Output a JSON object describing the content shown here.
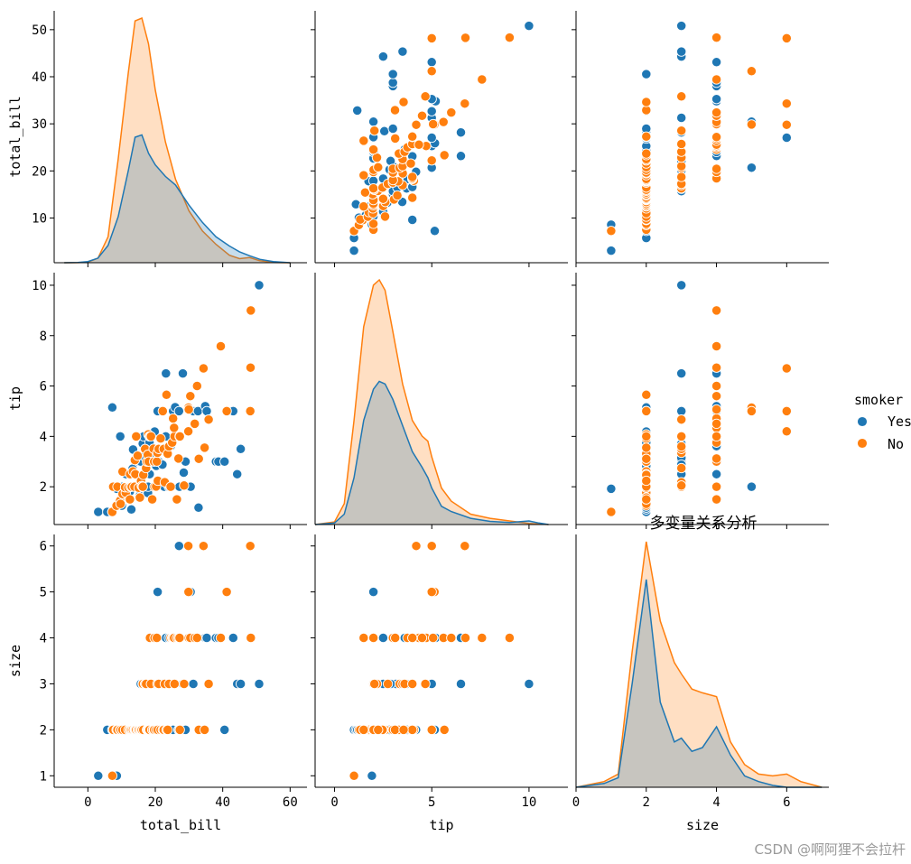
{
  "chart_data": {
    "type": "scatter",
    "kind": "pairplot",
    "title": "多变量关系分析",
    "variables": [
      "total_bill",
      "tip",
      "size"
    ],
    "hue": "smoker",
    "legend": {
      "title": "smoker",
      "placement": "right",
      "entries": [
        {
          "label": "Yes",
          "color": "#1f77b4"
        },
        {
          "label": "No",
          "color": "#ff7f0e"
        }
      ]
    },
    "axes": {
      "total_bill": {
        "range": [
          -10,
          65
        ],
        "ticks": [
          0,
          20,
          40,
          60
        ],
        "tick_labels": [
          "0",
          "20",
          "40",
          "60"
        ],
        "row_ticks": [
          10,
          20,
          30,
          40,
          50
        ],
        "row_tick_labels": [
          "10",
          "20",
          "30",
          "40",
          "50"
        ],
        "row_range": [
          0.5,
          54
        ]
      },
      "tip": {
        "range": [
          -1,
          12
        ],
        "ticks": [
          0,
          5,
          10
        ],
        "tick_labels": [
          "0",
          "5",
          "10"
        ],
        "row_ticks": [
          2,
          4,
          6,
          8,
          10
        ],
        "row_tick_labels": [
          "2",
          "4",
          "6",
          "8",
          "10"
        ],
        "row_range": [
          0.5,
          10.5
        ]
      },
      "size": {
        "range": [
          0,
          7.2
        ],
        "ticks": [
          0,
          2,
          4,
          6
        ],
        "tick_labels": [
          "0",
          "2",
          "4",
          "6"
        ],
        "row_ticks": [
          1,
          2,
          3,
          4,
          5,
          6
        ],
        "row_tick_labels": [
          "1",
          "2",
          "3",
          "4",
          "5",
          "6"
        ],
        "row_range": [
          0.75,
          6.25
        ]
      }
    },
    "kde": {
      "total_bill": {
        "x": [
          -7,
          -3,
          0,
          3,
          6,
          9,
          12,
          14,
          16,
          18,
          20,
          23,
          26,
          30,
          34,
          38,
          42,
          45,
          48,
          51,
          55,
          60
        ],
        "series": [
          {
            "name": "Yes",
            "values": [
              0,
              0.05,
              0.2,
              0.8,
              3,
              8,
              16,
              21.8,
              22.2,
              19,
              17,
              15,
              13.5,
              10,
              7,
              4.5,
              2.9,
              1.9,
              1.2,
              0.6,
              0.2,
              0
            ]
          },
          {
            "name": "No",
            "values": [
              0,
              0.01,
              0.1,
              0.8,
              4.5,
              18,
              33,
              42,
              42.5,
              38,
              30,
              21,
              14.5,
              9,
              5.5,
              3.2,
              1.3,
              0.7,
              0.9,
              0.35,
              0.05,
              0
            ]
          }
        ]
      },
      "tip": {
        "x": [
          -1,
          0,
          0.5,
          1,
          1.5,
          2,
          2.3,
          2.6,
          3,
          3.5,
          4,
          4.5,
          4.8,
          5,
          5.5,
          6,
          7,
          8,
          9,
          10,
          10.5,
          11
        ],
        "series": [
          {
            "name": "Yes",
            "values": [
              0,
              0.003,
              0.02,
              0.09,
              0.2,
              0.26,
              0.275,
              0.27,
              0.24,
              0.19,
              0.14,
              0.11,
              0.09,
              0.07,
              0.035,
              0.025,
              0.012,
              0.006,
              0.004,
              0.007,
              0.003,
              0
            ]
          },
          {
            "name": "No",
            "values": [
              0,
              0.005,
              0.04,
              0.2,
              0.38,
              0.46,
              0.47,
              0.45,
              0.37,
              0.27,
              0.2,
              0.17,
              0.16,
              0.13,
              0.07,
              0.045,
              0.02,
              0.012,
              0.007,
              0.002,
              0.001,
              0
            ]
          }
        ]
      },
      "size": {
        "x": [
          0,
          0.8,
          1.2,
          1.6,
          2,
          2.4,
          2.8,
          3,
          3.3,
          3.6,
          4,
          4.4,
          4.8,
          5.2,
          5.6,
          6,
          6.4,
          7
        ],
        "series": [
          {
            "name": "Yes",
            "values": [
              0,
              0.02,
              0.05,
              0.55,
              1.1,
              0.45,
              0.24,
              0.26,
              0.19,
              0.21,
              0.32,
              0.17,
              0.06,
              0.03,
              0.01,
              0,
              0,
              0
            ]
          },
          {
            "name": "No",
            "values": [
              0,
              0.03,
              0.07,
              0.72,
              1.3,
              0.88,
              0.66,
              0.6,
              0.52,
              0.5,
              0.48,
              0.24,
              0.12,
              0.07,
              0.06,
              0.07,
              0.03,
              0
            ]
          }
        ]
      }
    },
    "points": {
      "Yes": [
        [
          3.07,
          1,
          1
        ],
        [
          5.75,
          1,
          2
        ],
        [
          7.25,
          1,
          1
        ],
        [
          7.25,
          5.15,
          2
        ],
        [
          8.58,
          1.92,
          1
        ],
        [
          9.6,
          4,
          2
        ],
        [
          10.07,
          1.25,
          2
        ],
        [
          10.34,
          2,
          2
        ],
        [
          10.59,
          1.61,
          2
        ],
        [
          11.35,
          2.5,
          2
        ],
        [
          12.9,
          1.1,
          2
        ],
        [
          12.43,
          1.8,
          2
        ],
        [
          13,
          2,
          2
        ],
        [
          13.42,
          3.48,
          2
        ],
        [
          13.28,
          2.72,
          2
        ],
        [
          14.15,
          2,
          2
        ],
        [
          14.83,
          3.02,
          2
        ],
        [
          15.06,
          3,
          2
        ],
        [
          15.36,
          1.64,
          2
        ],
        [
          15.48,
          2.02,
          2
        ],
        [
          15.69,
          3,
          3
        ],
        [
          16.29,
          3.71,
          3
        ],
        [
          16.47,
          3.23,
          3
        ],
        [
          16.58,
          4,
          2
        ],
        [
          17.47,
          3.5,
          2
        ],
        [
          17.82,
          1.75,
          2
        ],
        [
          17.89,
          2,
          2
        ],
        [
          18.29,
          3.76,
          2
        ],
        [
          18.35,
          2.5,
          4
        ],
        [
          19.44,
          3,
          2
        ],
        [
          19.81,
          4.19,
          2
        ],
        [
          20.08,
          3.15,
          3
        ],
        [
          20.27,
          2.83,
          2
        ],
        [
          20.29,
          3.21,
          2
        ],
        [
          20.69,
          5,
          5
        ],
        [
          20.9,
          3.5,
          3
        ],
        [
          21.01,
          3,
          2
        ],
        [
          22.12,
          2.88,
          3
        ],
        [
          22.42,
          3.48,
          2
        ],
        [
          22.67,
          2,
          2
        ],
        [
          23.1,
          4,
          3
        ],
        [
          23.17,
          6.5,
          4
        ],
        [
          24.01,
          2,
          4
        ],
        [
          24.59,
          3.61,
          4
        ],
        [
          24.27,
          2.03,
          2
        ],
        [
          25.28,
          5,
          2
        ],
        [
          25.89,
          5.16,
          4
        ],
        [
          26.86,
          3.14,
          2
        ],
        [
          27.05,
          5,
          6
        ],
        [
          27.18,
          2,
          2
        ],
        [
          28.17,
          6.5,
          3
        ],
        [
          28.44,
          2.56,
          2
        ],
        [
          28.97,
          3,
          2
        ],
        [
          30.46,
          2,
          5
        ],
        [
          31.27,
          5,
          3
        ],
        [
          32.68,
          5,
          2
        ],
        [
          32.83,
          1.17,
          2
        ],
        [
          34.81,
          5.2,
          4
        ],
        [
          35.26,
          5,
          4
        ],
        [
          38.01,
          3,
          4
        ],
        [
          38.73,
          3,
          4
        ],
        [
          40.55,
          3,
          2
        ],
        [
          43.11,
          5,
          4
        ],
        [
          44.3,
          2.5,
          3
        ],
        [
          45.35,
          3.5,
          3
        ],
        [
          50.81,
          10,
          3
        ]
      ],
      "No": [
        [
          7.25,
          1,
          1
        ],
        [
          7.51,
          2,
          2
        ],
        [
          8.51,
          1.25,
          2
        ],
        [
          8.77,
          2,
          2
        ],
        [
          9.55,
          1.45,
          2
        ],
        [
          9.68,
          1.32,
          2
        ],
        [
          10.29,
          2.6,
          2
        ],
        [
          10.27,
          1.71,
          2
        ],
        [
          11.24,
          1.76,
          2
        ],
        [
          11.02,
          1.98,
          2
        ],
        [
          12.02,
          1.97,
          2
        ],
        [
          12.54,
          2.5,
          2
        ],
        [
          12.46,
          1.5,
          2
        ],
        [
          12.69,
          2,
          2
        ],
        [
          13.03,
          2,
          2
        ],
        [
          13.39,
          2.61,
          2
        ],
        [
          13.81,
          2,
          2
        ],
        [
          13.94,
          3.06,
          2
        ],
        [
          14.07,
          2.5,
          2
        ],
        [
          14.31,
          4,
          2
        ],
        [
          14.78,
          3.23,
          2
        ],
        [
          15.04,
          1.96,
          2
        ],
        [
          15.42,
          1.57,
          2
        ],
        [
          15.77,
          2.23,
          2
        ],
        [
          15.98,
          2.03,
          2
        ],
        [
          16.21,
          2,
          3
        ],
        [
          16.31,
          2,
          3
        ],
        [
          16.45,
          2.47,
          2
        ],
        [
          16.97,
          3.5,
          3
        ],
        [
          17.26,
          2.74,
          3
        ],
        [
          17.51,
          3,
          2
        ],
        [
          17.78,
          3.27,
          2
        ],
        [
          17.92,
          4.08,
          2
        ],
        [
          18.04,
          3,
          2
        ],
        [
          18.28,
          4,
          2
        ],
        [
          18.43,
          4,
          4
        ],
        [
          18.71,
          4,
          3
        ],
        [
          19.08,
          1.5,
          2
        ],
        [
          19.49,
          3.51,
          2
        ],
        [
          19.65,
          3,
          2
        ],
        [
          19.77,
          2,
          4
        ],
        [
          20.23,
          2.01,
          2
        ],
        [
          20.45,
          3,
          4
        ],
        [
          20.65,
          3.35,
          3
        ],
        [
          20.76,
          2.24,
          2
        ],
        [
          21.01,
          3.5,
          3
        ],
        [
          21.58,
          3.92,
          2
        ],
        [
          22.23,
          5,
          2
        ],
        [
          22.49,
          3.5,
          2
        ],
        [
          22.82,
          2.18,
          3
        ],
        [
          23.33,
          5.65,
          2
        ],
        [
          23.68,
          3.31,
          2
        ],
        [
          24.06,
          3.6,
          3
        ],
        [
          24.55,
          2,
          4
        ],
        [
          25,
          3.75,
          4
        ],
        [
          25.29,
          4.71,
          4
        ],
        [
          25.71,
          4,
          3
        ],
        [
          25.56,
          4.34,
          4
        ],
        [
          26.41,
          1.5,
          4
        ],
        [
          26.88,
          3.12,
          4
        ],
        [
          27.2,
          4,
          4
        ],
        [
          27.28,
          4,
          2
        ],
        [
          28.55,
          2.05,
          3
        ],
        [
          29.8,
          4.2,
          6
        ],
        [
          29.85,
          5.14,
          5
        ],
        [
          29.93,
          5.07,
          4
        ],
        [
          30.4,
          5.6,
          4
        ],
        [
          31.71,
          4.5,
          4
        ],
        [
          32.4,
          6,
          4
        ],
        [
          32.9,
          3.11,
          2
        ],
        [
          34.3,
          6.7,
          6
        ],
        [
          34.63,
          3.55,
          2
        ],
        [
          35.83,
          4.67,
          3
        ],
        [
          39.42,
          7.58,
          4
        ],
        [
          41.19,
          5,
          5
        ],
        [
          48.17,
          5,
          6
        ],
        [
          48.27,
          6.73,
          4
        ],
        [
          48.33,
          9,
          4
        ]
      ]
    }
  },
  "watermark": "CSDN @啊阿狸不会拉杆"
}
